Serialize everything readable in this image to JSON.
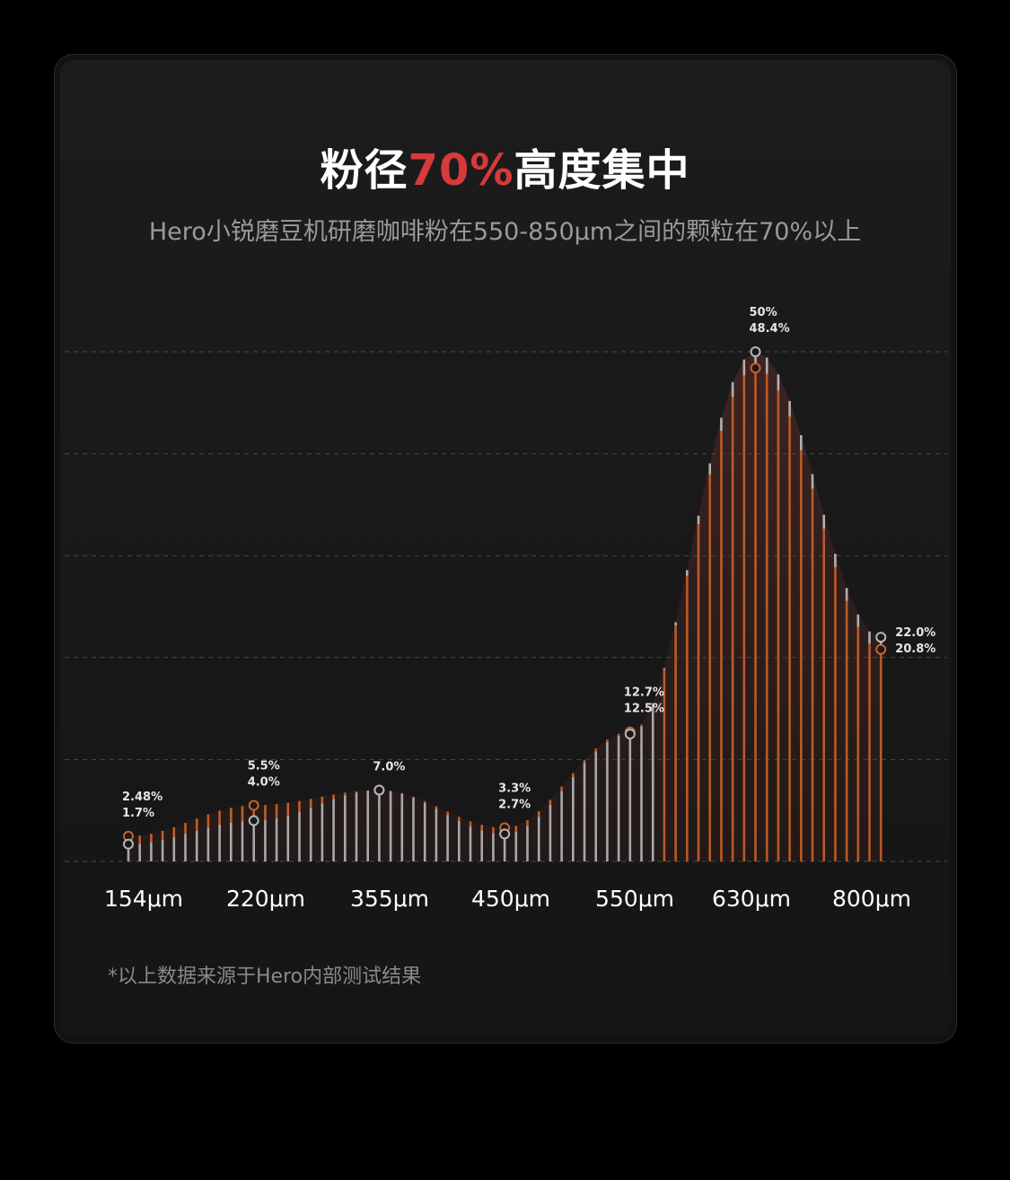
{
  "title": {
    "prefix": "粉径",
    "highlight": "70%",
    "suffix": "高度集中",
    "highlight_color": "#d63a3a"
  },
  "subtitle": "Hero小锐磨豆机研磨咖啡粉在550-850μm之间的颗粒在70%以上",
  "footnote": "*以上数据来源于Hero内部测试结果",
  "colors": {
    "background": "#000000",
    "card": "#1a1a1a",
    "orange_series": "#c8622a",
    "gray_series": "#b8b8b8",
    "grid": "#555555"
  },
  "chart_data": {
    "type": "line",
    "x_tick_labels": [
      "154μm",
      "220μm",
      "355μm",
      "450μm",
      "550μm",
      "630μm",
      "800μm"
    ],
    "ylim": [
      0,
      50
    ],
    "grid": "dashed horizontal",
    "series": [
      {
        "name": "",
        "color": "#c8622a",
        "points": [
          {
            "x": 0,
            "value": 2.48,
            "label": "2.48%"
          },
          {
            "x": 11,
            "value": 5.5,
            "label": "5.5%"
          },
          {
            "x": 22,
            "value": 7.0,
            "label": "7.0%"
          },
          {
            "x": 33,
            "value": 3.3,
            "label": "3.3%"
          },
          {
            "x": 44,
            "value": 12.7,
            "label": "12.7%"
          },
          {
            "x": 55,
            "value": 48.4,
            "label": "48.4%"
          },
          {
            "x": 66,
            "value": 20.8,
            "label": "20.8%"
          }
        ]
      },
      {
        "name": "",
        "color": "#b8b8b8",
        "points": [
          {
            "x": 0,
            "value": 1.7,
            "label": "1.7%"
          },
          {
            "x": 11,
            "value": 4.0,
            "label": "4.0%"
          },
          {
            "x": 22,
            "value": 7.0,
            "label": "7.0%"
          },
          {
            "x": 33,
            "value": 2.7,
            "label": "2.7%"
          },
          {
            "x": 44,
            "value": 12.5,
            "label": "12.5%"
          },
          {
            "x": 55,
            "value": 50,
            "label": "50%"
          },
          {
            "x": 66,
            "value": 22.0,
            "label": "22.0%"
          }
        ]
      }
    ],
    "annotations": [
      {
        "x": 0,
        "lines": [
          "2.48%",
          "1.7%"
        ]
      },
      {
        "x": 11,
        "lines": [
          "5.5%",
          "4.0%"
        ]
      },
      {
        "x": 22,
        "lines": [
          "7.0%"
        ]
      },
      {
        "x": 33,
        "lines": [
          "3.3%",
          "2.7%"
        ]
      },
      {
        "x": 44,
        "lines": [
          "12.7%",
          "12.5%"
        ]
      },
      {
        "x": 55,
        "lines": [
          "50%",
          "48.4%"
        ]
      },
      {
        "x": 66,
        "lines": [
          "22.0%",
          "20.8%"
        ]
      }
    ]
  }
}
